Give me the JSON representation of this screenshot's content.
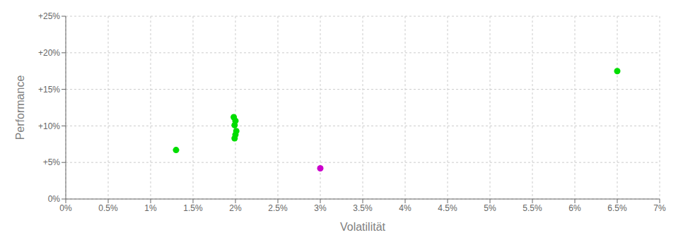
{
  "chart_data": {
    "type": "scatter",
    "xlabel": "Volatilität",
    "ylabel": "Performance",
    "xlim": [
      0,
      0.07
    ],
    "ylim": [
      0,
      0.25
    ],
    "xticks": [
      {
        "value": 0.0,
        "label": "0%"
      },
      {
        "value": 0.005,
        "label": "0.5%"
      },
      {
        "value": 0.01,
        "label": "1%"
      },
      {
        "value": 0.015,
        "label": "1.5%"
      },
      {
        "value": 0.02,
        "label": "2%"
      },
      {
        "value": 0.025,
        "label": "2.5%"
      },
      {
        "value": 0.03,
        "label": "3%"
      },
      {
        "value": 0.035,
        "label": "3.5%"
      },
      {
        "value": 0.04,
        "label": "4%"
      },
      {
        "value": 0.045,
        "label": "4.5%"
      },
      {
        "value": 0.05,
        "label": "5%"
      },
      {
        "value": 0.055,
        "label": "5.5%"
      },
      {
        "value": 0.06,
        "label": "6%"
      },
      {
        "value": 0.065,
        "label": "6.5%"
      },
      {
        "value": 0.07,
        "label": "7%"
      }
    ],
    "yticks": [
      {
        "value": 0.0,
        "label": "0%"
      },
      {
        "value": 0.05,
        "label": "+5%"
      },
      {
        "value": 0.1,
        "label": "+10%"
      },
      {
        "value": 0.15,
        "label": "+15%"
      },
      {
        "value": 0.2,
        "label": "+20%"
      },
      {
        "value": 0.25,
        "label": "+25%"
      }
    ],
    "grid": true,
    "series": [
      {
        "color": "#00dd00",
        "x": [
          0.013,
          0.0198,
          0.02,
          0.0199,
          0.0201,
          0.02,
          0.0199,
          0.065
        ],
        "values": [
          0.067,
          0.112,
          0.107,
          0.101,
          0.093,
          0.088,
          0.083,
          0.175
        ]
      },
      {
        "color": "#cc00cc",
        "x": [
          0.03
        ],
        "values": [
          0.042
        ]
      }
    ]
  }
}
